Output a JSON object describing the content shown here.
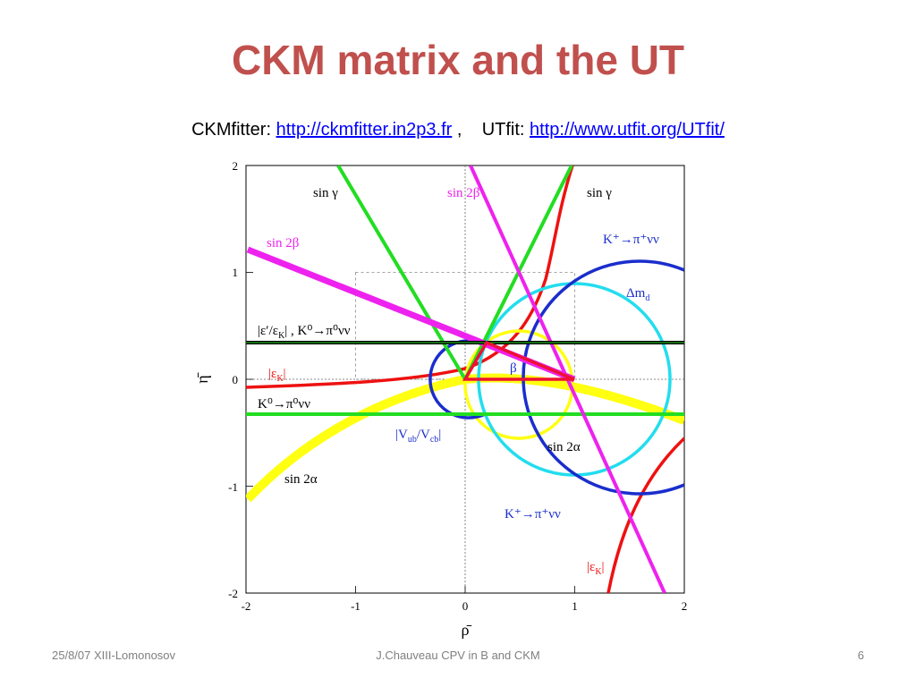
{
  "slide": {
    "title": "CKM matrix and the UT",
    "links": {
      "ckmfitter_label": "CKMfitter:",
      "ckmfitter_url": "http://ckmfitter.in2p3.fr",
      "separator": ",",
      "utfit_label": "UTfit:",
      "utfit_url": "http://www.utfit.org/UTfit/"
    },
    "footer": {
      "date_event": "25/8/07 XIII-Lomonosov",
      "author_title": "J.Chauveau CPV in B and CKM",
      "page_number": "6"
    }
  },
  "plot": {
    "x_axis_title": "ρ̄",
    "y_axis_title": "η̄",
    "x_range": [
      -2,
      2
    ],
    "y_range": [
      -2,
      2
    ],
    "x_ticks": [
      "-2",
      "-1",
      "0",
      "1",
      "2"
    ],
    "y_ticks": [
      "2",
      "1",
      "0",
      "-1",
      "-2"
    ],
    "labels": {
      "singamma_left": "sin γ",
      "singamma_right": "sin γ",
      "sin2beta_top": "sin 2β",
      "sin2beta_left": "sin 2β",
      "kpinunu_top": "K⁺→π⁺νν",
      "delta_md": "Δm",
      "delta_md_sub": "d",
      "eps_prime": "|ε′/ε",
      "eps_prime_sub": "K",
      "eps_prime_tail": "| , K⁰→π⁰νν",
      "eps_k_left": "|ε",
      "eps_k_left_sub": "K",
      "eps_k_left_tail": "|",
      "k0pinunu": "K⁰→π⁰νν",
      "beta": "β",
      "vub_vcb": "|V",
      "vub_sub": "ub",
      "vub_mid": "/V",
      "vcb_sub": "cb",
      "vub_tail": "|",
      "sin2alpha_right": "sin 2α",
      "sin2alpha_left": "sin 2α",
      "kpinunu_bottom": "K⁺→π⁺νν",
      "eps_k_bottom": "|ε",
      "eps_k_bottom_sub": "K",
      "eps_k_bottom_tail": "|"
    },
    "colors": {
      "sin_gamma": "#22dd22",
      "sin_2beta": "#ee22ee",
      "eps_k": "#ee1111",
      "delta_md": "#22ddee",
      "kpinunu": "#1a2ecc",
      "vub_vcb": "#1a2ecc",
      "sin_2alpha": "#ffff11",
      "eps_prime": "#000000",
      "triangle": "#ee1133"
    }
  }
}
